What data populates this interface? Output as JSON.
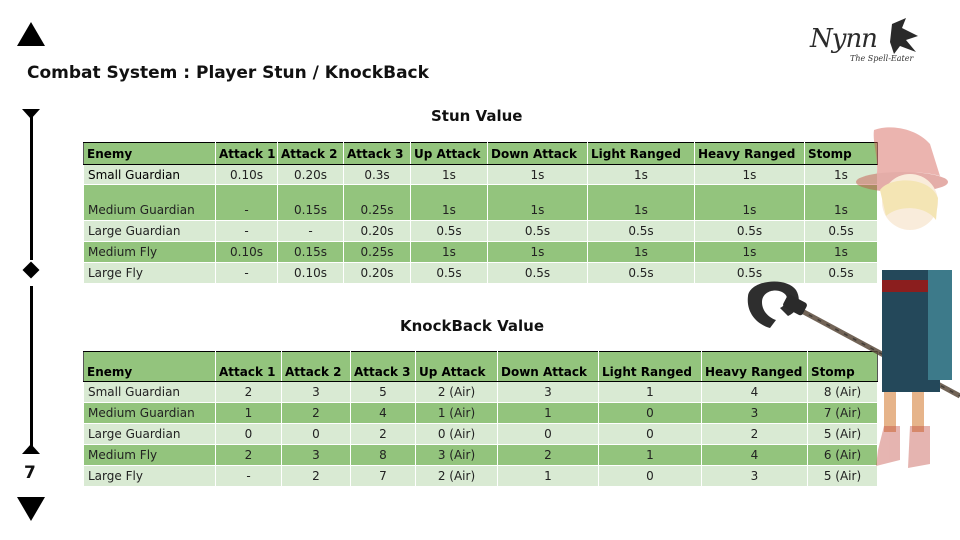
{
  "slide": {
    "title": "Combat System : Player Stun / KnockBack",
    "page_number": "7"
  },
  "logo": {
    "word": "Nynn",
    "subtitle": "The Spell-Eater"
  },
  "stun": {
    "title": "Stun Value",
    "headers": [
      "Enemy",
      "Attack 1",
      "Attack 2",
      "Attack 3",
      "Up Attack",
      "Down Attack",
      "Light Ranged",
      "Heavy Ranged",
      "Stomp"
    ],
    "rows": [
      [
        "Small Guardian",
        "0.10s",
        "0.20s",
        "0.3s",
        "1s",
        "1s",
        "1s",
        "1s",
        "1s"
      ],
      [
        "Medium Guardian",
        "-",
        "0.15s",
        "0.25s",
        "1s",
        "1s",
        "1s",
        "1s",
        "1s"
      ],
      [
        "Large Guardian",
        "-",
        "-",
        "0.20s",
        "0.5s",
        "0.5s",
        "0.5s",
        "0.5s",
        "0.5s"
      ],
      [
        "Medium Fly",
        "0.10s",
        "0.15s",
        "0.25s",
        "1s",
        "1s",
        "1s",
        "1s",
        "1s"
      ],
      [
        "Large Fly",
        "-",
        "0.10s",
        "0.20s",
        "0.5s",
        "0.5s",
        "0.5s",
        "0.5s",
        "0.5s"
      ]
    ]
  },
  "knockback": {
    "title": "KnockBack Value",
    "headers": [
      "Enemy",
      "Attack 1",
      "Attack 2",
      "Attack 3",
      "Up Attack",
      "Down Attack",
      "Light Ranged",
      "Heavy Ranged",
      "Stomp"
    ],
    "rows": [
      [
        "Small Guardian",
        "2",
        "3",
        "5",
        "2 (Air)",
        "3",
        "1",
        "4",
        "8 (Air)"
      ],
      [
        "Medium Guardian",
        "1",
        "2",
        "4",
        "1 (Air)",
        "1",
        "0",
        "3",
        "7 (Air)"
      ],
      [
        "Large Guardian",
        "0",
        "0",
        "2",
        "0 (Air)",
        "0",
        "0",
        "2",
        "5 (Air)"
      ],
      [
        "Medium Fly",
        "2",
        "3",
        "8",
        "3 (Air)",
        "2",
        "1",
        "4",
        "6 (Air)"
      ],
      [
        "Large Fly",
        "-",
        "2",
        "7",
        "2 (Air)",
        "1",
        "0",
        "3",
        "5 (Air)"
      ]
    ]
  },
  "colors": {
    "header_green": "#93c47d",
    "row_light": "#d9ead3",
    "row_dark": "#93c47d"
  }
}
